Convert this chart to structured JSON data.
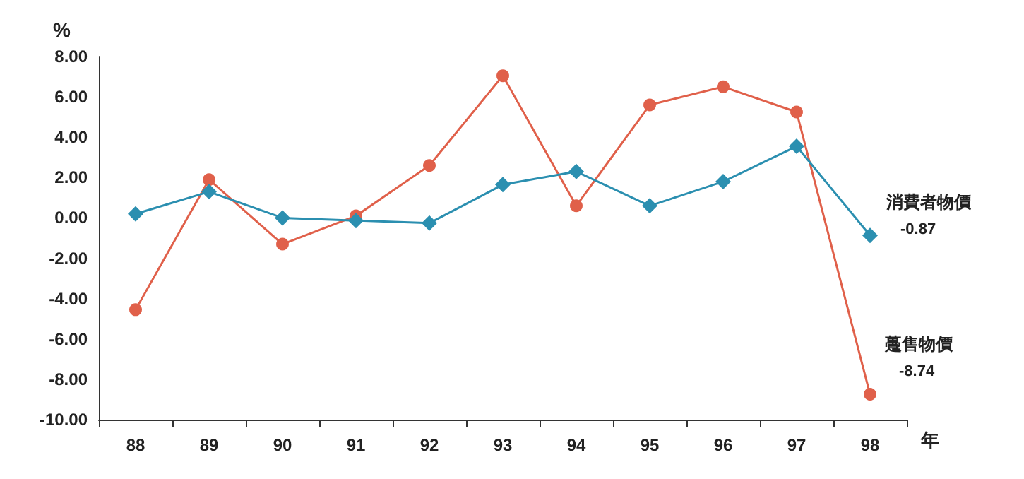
{
  "chart_data": {
    "type": "line",
    "ylabel": "%",
    "xlabel": "年",
    "categories": [
      "88",
      "89",
      "90",
      "91",
      "92",
      "93",
      "94",
      "95",
      "96",
      "97",
      "98"
    ],
    "ylim": [
      -10,
      8
    ],
    "yticks": [
      {
        "value": -10,
        "label": "-10.00"
      },
      {
        "value": -8,
        "label": "-8.00"
      },
      {
        "value": -6,
        "label": "-6.00"
      },
      {
        "value": -4,
        "label": "-4.00"
      },
      {
        "value": -2,
        "label": "-2.00"
      },
      {
        "value": 0,
        "label": "0.00"
      },
      {
        "value": 2,
        "label": "2.00"
      },
      {
        "value": 4,
        "label": "4.00"
      },
      {
        "value": 6,
        "label": "6.00"
      },
      {
        "value": 8,
        "label": "8.00"
      }
    ],
    "grid": false,
    "legend": false,
    "series": [
      {
        "name": "消費者物價",
        "color": "#2b8fb0",
        "marker": "diamond",
        "values": [
          0.2,
          1.3,
          0.0,
          -0.13,
          -0.26,
          1.65,
          2.3,
          0.6,
          1.8,
          3.55,
          -0.87
        ],
        "value_labels": [
          null,
          null,
          null,
          null,
          null,
          null,
          null,
          null,
          null,
          null,
          "-0.87"
        ]
      },
      {
        "name": "躉售物價",
        "color": "#e0604a",
        "marker": "circle",
        "values": [
          -4.55,
          1.9,
          -1.3,
          0.1,
          2.6,
          7.05,
          0.6,
          5.6,
          6.5,
          5.25,
          -8.74
        ],
        "value_labels": [
          null,
          null,
          null,
          null,
          null,
          null,
          null,
          null,
          null,
          null,
          "-8.74"
        ]
      }
    ]
  }
}
